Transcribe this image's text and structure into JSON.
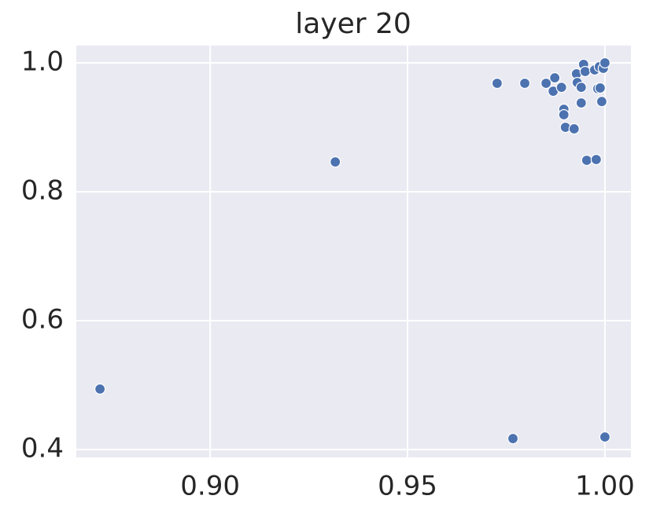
{
  "chart_data": {
    "type": "scatter",
    "title": "layer 20",
    "x": [
      0.8721,
      0.9317,
      0.9727,
      0.9797,
      0.9851,
      0.9873,
      0.9869,
      0.989,
      0.9896,
      0.9896,
      0.99,
      0.9922,
      0.9928,
      0.993,
      0.994,
      0.994,
      0.9946,
      0.995,
      0.9954,
      0.9974,
      0.9978,
      0.9982,
      0.9988,
      0.9986,
      0.9996,
      0.9992,
      1.0,
      0.9767,
      1.0
    ],
    "series": [
      {
        "color": "#4c72b0",
        "values": [
          0.4939,
          0.8463,
          0.9683,
          0.9683,
          0.9683,
          0.9768,
          0.956,
          0.962,
          0.928,
          0.9195,
          0.9,
          0.8976,
          0.983,
          0.9695,
          0.962,
          0.9378,
          0.9976,
          0.9866,
          0.8488,
          0.989,
          0.85,
          0.96,
          0.961,
          0.994,
          0.9915,
          0.94,
          1.0,
          0.417,
          0.4195
        ]
      }
    ],
    "xlim": [
      0.8661,
      1.0066
    ],
    "ylim": [
      0.3878,
      1.0268
    ],
    "xticks": [
      {
        "value": 0.9,
        "label": "0.90"
      },
      {
        "value": 0.95,
        "label": "0.95"
      },
      {
        "value": 1.0,
        "label": "1.00"
      }
    ],
    "yticks": [
      {
        "value": 0.4,
        "label": "0.4"
      },
      {
        "value": 0.6,
        "label": "0.6"
      },
      {
        "value": 0.8,
        "label": "0.8"
      },
      {
        "value": 1.0,
        "label": "1.0"
      }
    ],
    "grid": true,
    "background": "#eaeaf2"
  }
}
